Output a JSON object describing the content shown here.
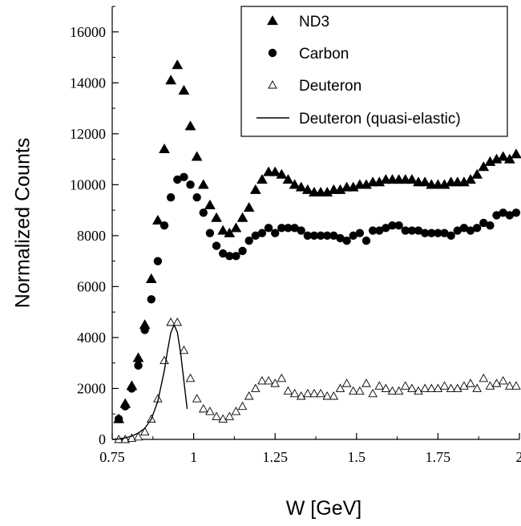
{
  "chart_data": {
    "type": "scatter",
    "xlabel": "W [GeV]",
    "ylabel": "Normalized Counts",
    "xlim": [
      0.75,
      2.0
    ],
    "ylim": [
      0,
      17000
    ],
    "xticks": [
      0.75,
      1.0,
      1.25,
      1.5,
      1.75,
      2.0
    ],
    "xtick_labels": [
      "0.75",
      "1",
      "1.25",
      "1.5",
      "1.75",
      "2"
    ],
    "yticks": [
      0,
      2000,
      4000,
      6000,
      8000,
      10000,
      12000,
      14000,
      16000
    ],
    "ytick_labels": [
      "0",
      "2000",
      "4000",
      "6000",
      "8000",
      "10000",
      "12000",
      "14000",
      "16000"
    ],
    "grid": false,
    "legend_position": "top-right",
    "series": [
      {
        "name": "ND3",
        "marker": "filled-triangle",
        "color": "#000000",
        "x": [
          0.77,
          0.79,
          0.81,
          0.83,
          0.85,
          0.87,
          0.89,
          0.91,
          0.93,
          0.95,
          0.97,
          0.99,
          1.01,
          1.03,
          1.05,
          1.07,
          1.09,
          1.11,
          1.13,
          1.15,
          1.17,
          1.19,
          1.21,
          1.23,
          1.25,
          1.27,
          1.29,
          1.31,
          1.33,
          1.35,
          1.37,
          1.39,
          1.41,
          1.43,
          1.45,
          1.47,
          1.49,
          1.51,
          1.53,
          1.55,
          1.57,
          1.59,
          1.61,
          1.63,
          1.65,
          1.67,
          1.69,
          1.71,
          1.73,
          1.75,
          1.77,
          1.79,
          1.81,
          1.83,
          1.85,
          1.87,
          1.89,
          1.91,
          1.93,
          1.95,
          1.97,
          1.99
        ],
        "y": [
          800,
          1400,
          2100,
          3200,
          4500,
          6300,
          8600,
          11400,
          14100,
          14700,
          13700,
          12300,
          11100,
          10000,
          9200,
          8700,
          8200,
          8100,
          8300,
          8700,
          9100,
          9800,
          10200,
          10500,
          10500,
          10400,
          10200,
          10000,
          9900,
          9800,
          9700,
          9700,
          9700,
          9800,
          9800,
          9900,
          9900,
          10000,
          10000,
          10100,
          10100,
          10200,
          10200,
          10200,
          10200,
          10200,
          10100,
          10100,
          10000,
          10000,
          10000,
          10100,
          10100,
          10100,
          10200,
          10400,
          10700,
          10900,
          11000,
          11100,
          11000,
          11200
        ]
      },
      {
        "name": "Carbon",
        "marker": "filled-circle",
        "color": "#000000",
        "x": [
          0.77,
          0.79,
          0.81,
          0.83,
          0.85,
          0.87,
          0.89,
          0.91,
          0.93,
          0.95,
          0.97,
          0.99,
          1.01,
          1.03,
          1.05,
          1.07,
          1.09,
          1.11,
          1.13,
          1.15,
          1.17,
          1.19,
          1.21,
          1.23,
          1.25,
          1.27,
          1.29,
          1.31,
          1.33,
          1.35,
          1.37,
          1.39,
          1.41,
          1.43,
          1.45,
          1.47,
          1.49,
          1.51,
          1.53,
          1.55,
          1.57,
          1.59,
          1.61,
          1.63,
          1.65,
          1.67,
          1.69,
          1.71,
          1.73,
          1.75,
          1.77,
          1.79,
          1.81,
          1.83,
          1.85,
          1.87,
          1.89,
          1.91,
          1.93,
          1.95,
          1.97,
          1.99
        ],
        "y": [
          800,
          1300,
          2000,
          2900,
          4300,
          5500,
          7000,
          8400,
          9500,
          10200,
          10300,
          10000,
          9500,
          8900,
          8100,
          7600,
          7300,
          7200,
          7200,
          7400,
          7800,
          8000,
          8100,
          8300,
          8100,
          8300,
          8300,
          8300,
          8200,
          8000,
          8000,
          8000,
          8000,
          8000,
          7900,
          7800,
          8000,
          8100,
          7800,
          8200,
          8200,
          8300,
          8400,
          8400,
          8200,
          8200,
          8200,
          8100,
          8100,
          8100,
          8100,
          8000,
          8200,
          8300,
          8200,
          8300,
          8500,
          8400,
          8800,
          8900,
          8800,
          8900
        ]
      },
      {
        "name": "Deuteron",
        "marker": "open-triangle",
        "color": "#000000",
        "x": [
          0.77,
          0.79,
          0.81,
          0.83,
          0.85,
          0.87,
          0.89,
          0.91,
          0.93,
          0.95,
          0.97,
          0.99,
          1.01,
          1.03,
          1.05,
          1.07,
          1.09,
          1.11,
          1.13,
          1.15,
          1.17,
          1.19,
          1.21,
          1.23,
          1.25,
          1.27,
          1.29,
          1.31,
          1.33,
          1.35,
          1.37,
          1.39,
          1.41,
          1.43,
          1.45,
          1.47,
          1.49,
          1.51,
          1.53,
          1.55,
          1.57,
          1.59,
          1.61,
          1.63,
          1.65,
          1.67,
          1.69,
          1.71,
          1.73,
          1.75,
          1.77,
          1.79,
          1.81,
          1.83,
          1.85,
          1.87,
          1.89,
          1.91,
          1.93,
          1.95,
          1.97,
          1.99
        ],
        "y": [
          0,
          0,
          50,
          100,
          300,
          800,
          1600,
          3100,
          4600,
          4600,
          3500,
          2400,
          1600,
          1200,
          1100,
          900,
          800,
          900,
          1100,
          1300,
          1700,
          2000,
          2300,
          2300,
          2200,
          2400,
          1900,
          1800,
          1700,
          1800,
          1800,
          1800,
          1700,
          1700,
          2000,
          2200,
          1900,
          1900,
          2200,
          1800,
          2100,
          2000,
          1900,
          1900,
          2100,
          2000,
          1900,
          2000,
          2000,
          2000,
          2100,
          2000,
          2000,
          2100,
          2200,
          2000,
          2400,
          2100,
          2200,
          2300,
          2100,
          2100
        ]
      },
      {
        "name": "Deuteron (quasi-elastic)",
        "marker": "line",
        "color": "#000000",
        "x": [
          0.75,
          0.77,
          0.79,
          0.81,
          0.83,
          0.85,
          0.87,
          0.89,
          0.91,
          0.92,
          0.93,
          0.94,
          0.95,
          0.96,
          0.97,
          0.98
        ],
        "y": [
          0,
          20,
          60,
          130,
          250,
          430,
          800,
          1500,
          2700,
          3500,
          4200,
          4500,
          4200,
          3400,
          2300,
          1200
        ]
      }
    ]
  }
}
